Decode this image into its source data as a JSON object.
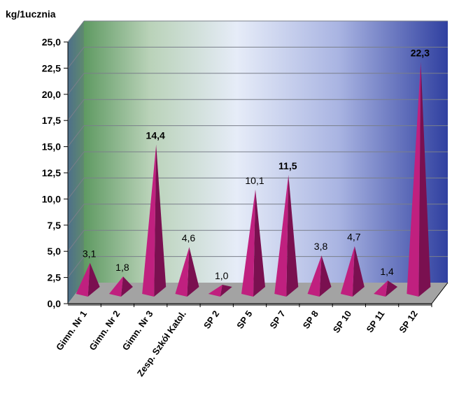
{
  "chart_data": {
    "type": "bar",
    "style": "3d-pyramid",
    "ylabel": "kg/1ucznia",
    "ylim": [
      0,
      25
    ],
    "ytick_step": 2.5,
    "yticks": [
      "0,0",
      "2,5",
      "5,0",
      "7,5",
      "10,0",
      "12,5",
      "15,0",
      "17,5",
      "20,0",
      "22,5",
      "25,0"
    ],
    "grid": true,
    "legend": "none",
    "categories": [
      "Gimn. Nr 1",
      "Gimn. Nr 2",
      "Gimn. Nr 3",
      "Zesp. Szkół Katol.",
      "SP 2",
      "SP 5",
      "SP 7",
      "SP 8",
      "SP 10",
      "SP 11",
      "SP 12"
    ],
    "values": [
      3.1,
      1.8,
      14.4,
      4.6,
      1.0,
      10.1,
      11.5,
      3.8,
      4.7,
      1.4,
      22.3
    ],
    "value_labels": [
      "3,1",
      "1,8",
      "14,4",
      "4,6",
      "1,0",
      "10,1",
      "11,5",
      "3,8",
      "4,7",
      "1,4",
      "22,3"
    ],
    "bold_labels": [
      false,
      false,
      true,
      false,
      false,
      false,
      true,
      false,
      false,
      false,
      true
    ],
    "colors": {
      "bar_front": "#c0207f",
      "bar_side": "#7a1050",
      "floor": "#9a9a9a",
      "wall_left": "#4f8a5a",
      "wall_mid": "#dce4f4",
      "wall_right": "#2b3f9e"
    }
  }
}
